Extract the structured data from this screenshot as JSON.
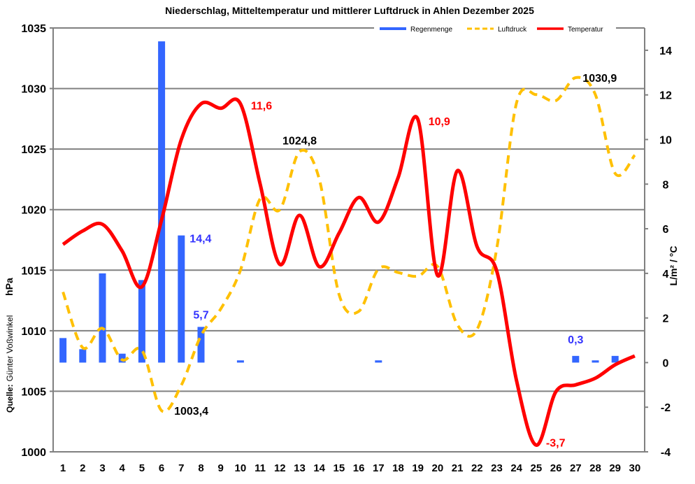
{
  "chart_data": {
    "type": "bar+line",
    "title": "Niederschlag, Mitteltemperatur und mittlerer Luftdruck in Ahlen Dezember 2025",
    "categories": [
      "1",
      "2",
      "3",
      "4",
      "5",
      "6",
      "7",
      "8",
      "9",
      "10",
      "11",
      "12",
      "13",
      "14",
      "15",
      "16",
      "17",
      "18",
      "19",
      "20",
      "21",
      "22",
      "23",
      "24",
      "25",
      "26",
      "27",
      "28",
      "29",
      "30"
    ],
    "left_axis": {
      "label": "hPa",
      "ylim": [
        1000,
        1035
      ],
      "ticks": [
        "1000",
        "1005",
        "1010",
        "1015",
        "1020",
        "1025",
        "1030",
        "1035"
      ]
    },
    "right_axis": {
      "label": "L/m²  /  °C",
      "ylim": [
        -4,
        15
      ],
      "ticks": [
        "-4",
        "-2",
        "0",
        "2",
        "4",
        "6",
        "8",
        "10",
        "12",
        "14"
      ]
    },
    "grid": true,
    "legend": {
      "position": "top-right",
      "entries": [
        "Regenmenge",
        "Luftdruck",
        "Temperatur"
      ]
    },
    "series": [
      {
        "name": "Regenmenge",
        "axis": "right",
        "type": "bar",
        "color": "#3366ff",
        "values": [
          1.1,
          0.6,
          4.0,
          0.4,
          3.7,
          14.4,
          5.7,
          1.6,
          0,
          0.1,
          0,
          0,
          0,
          0,
          0,
          0,
          0.1,
          0,
          0,
          0,
          0,
          0,
          0,
          0,
          0,
          0,
          0.3,
          0.1,
          0.3,
          0
        ]
      },
      {
        "name": "Luftdruck",
        "axis": "left",
        "type": "line",
        "color": "#ffc000",
        "dashed": true,
        "values": [
          1013.2,
          1008.6,
          1010.2,
          1007.6,
          1008.4,
          1003.4,
          1005.5,
          1009.6,
          1011.8,
          1015.0,
          1020.9,
          1020.0,
          1024.8,
          1022.5,
          1013.0,
          1011.6,
          1015.1,
          1014.8,
          1014.5,
          1015.3,
          1010.5,
          1010.1,
          1016.8,
          1028.8,
          1029.5,
          1029.0,
          1030.9,
          1029.5,
          1023.0,
          1024.5
        ]
      },
      {
        "name": "Temperatur",
        "axis": "right",
        "type": "line",
        "color": "#ff0000",
        "values": [
          5.3,
          5.9,
          6.2,
          5.0,
          3.4,
          6.4,
          10.0,
          11.6,
          11.4,
          11.6,
          8.0,
          4.4,
          6.6,
          4.3,
          5.8,
          7.4,
          6.3,
          8.3,
          10.9,
          3.9,
          8.6,
          5.2,
          4.1,
          -0.8,
          -3.7,
          -1.3,
          -1.0,
          -0.7,
          -0.1,
          0.3
        ]
      }
    ],
    "annotations": [
      {
        "text": "14,4",
        "color": "#3333ff",
        "anchor": "bar-7"
      },
      {
        "text": "5,7",
        "color": "#3333ff",
        "anchor": "bar-8"
      },
      {
        "text": "0,3",
        "color": "#3333ff",
        "anchor": "bar-27"
      },
      {
        "text": "11,6",
        "color": "#ff0000",
        "anchor": "temp-10"
      },
      {
        "text": "10,9",
        "color": "#ff0000",
        "anchor": "temp-19"
      },
      {
        "text": "-3,7",
        "color": "#ff0000",
        "anchor": "temp-25"
      },
      {
        "text": "1003,4",
        "color": "#000000",
        "anchor": "press-6"
      },
      {
        "text": "1024,8",
        "color": "#000000",
        "anchor": "press-13"
      },
      {
        "text": "1030,9",
        "color": "#000000",
        "anchor": "press-27"
      }
    ],
    "source": {
      "label": "Quelle:",
      "author": "Günter Voßwinkel"
    }
  }
}
